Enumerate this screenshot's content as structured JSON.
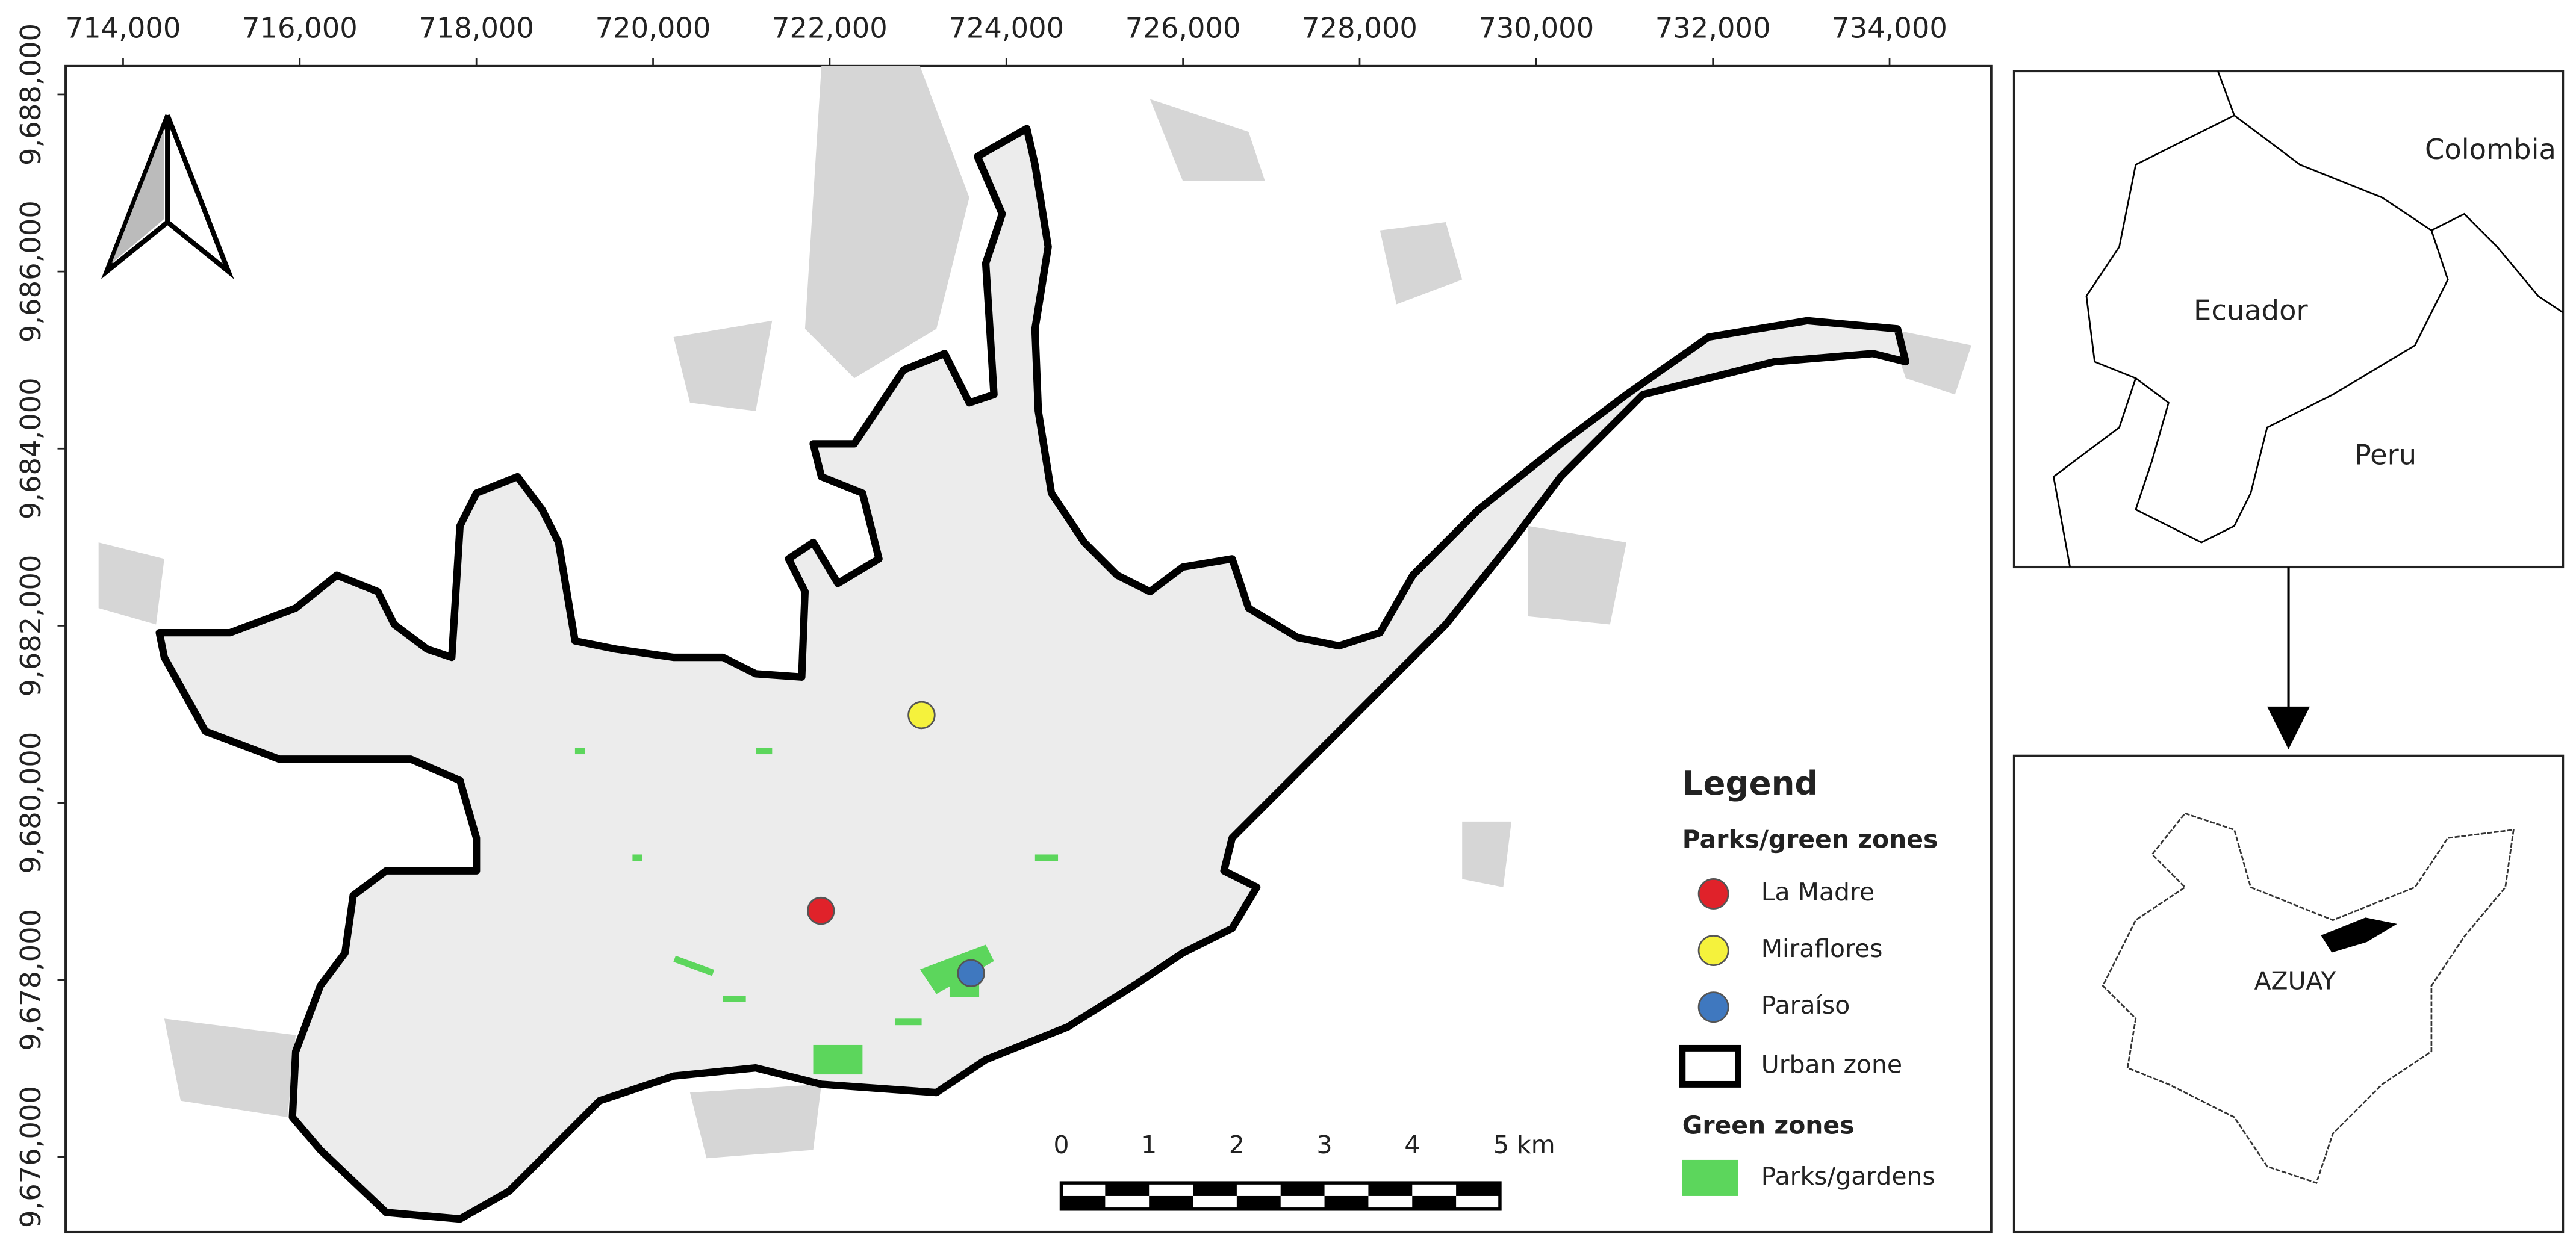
{
  "map": {
    "x_axis": {
      "xlim": [
        713350,
        735150
      ],
      "ticks": [
        {
          "value": 714000,
          "label": "714,000"
        },
        {
          "value": 716000,
          "label": "716,000"
        },
        {
          "value": 718000,
          "label": "718,000"
        },
        {
          "value": 720000,
          "label": "720,000"
        },
        {
          "value": 722000,
          "label": "722,000"
        },
        {
          "value": 724000,
          "label": "724,000"
        },
        {
          "value": 726000,
          "label": "726,000"
        },
        {
          "value": 728000,
          "label": "728,000"
        },
        {
          "value": 730000,
          "label": "730,000"
        },
        {
          "value": 732000,
          "label": "732,000"
        },
        {
          "value": 734000,
          "label": "734,000"
        }
      ]
    },
    "y_axis": {
      "ylim": [
        9675150,
        9688320
      ],
      "ticks": [
        {
          "value": 9676000,
          "label": "9,676,000"
        },
        {
          "value": 9678000,
          "label": "9,678,000"
        },
        {
          "value": 9680000,
          "label": "9,680,000"
        },
        {
          "value": 9682000,
          "label": "9,682,000"
        },
        {
          "value": 9684000,
          "label": "9,684,000"
        },
        {
          "value": 9686000,
          "label": "9,686,000"
        },
        {
          "value": 9688000,
          "label": "9,688,000"
        }
      ]
    },
    "legend": {
      "title": "Legend",
      "parks_title": "Parks/green zones",
      "parks": [
        {
          "name": "La Madre",
          "color": "#e0222a",
          "x": 721900,
          "y": 9678780
        },
        {
          "name": "Miraflores",
          "color": "#f5f23c",
          "x": 723040,
          "y": 9680990
        },
        {
          "name": "Paraíso",
          "color": "#3f78bf",
          "x": 723600,
          "y": 9678075
        }
      ],
      "urban_zone": "Urban zone",
      "green_title": "Green zones",
      "green_item": {
        "name": "Parks/gardens",
        "color": "#5cd65c"
      }
    },
    "scale_bar": {
      "labels": [
        "0",
        "1",
        "2",
        "3",
        "4",
        "5 km"
      ]
    },
    "inset_country": {
      "labels": [
        "Colombia",
        "Ecuador",
        "Peru"
      ]
    },
    "inset_province": {
      "label": "AZUAY"
    }
  }
}
